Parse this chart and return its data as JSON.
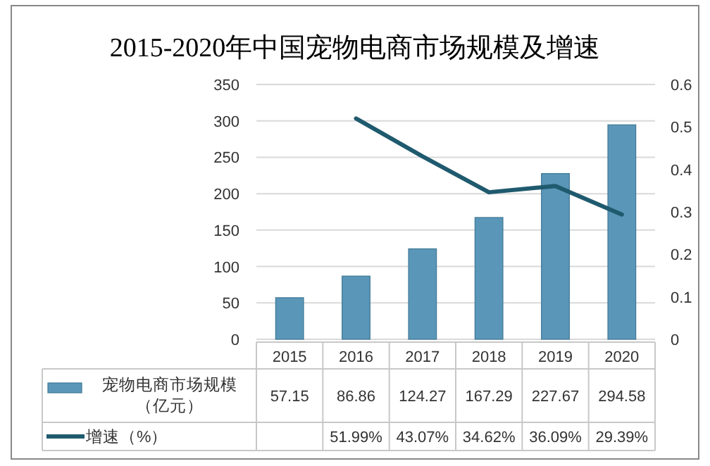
{
  "chart_data": {
    "type": "bar",
    "title": "2015-2020年中国宠物电商市场规模及增速",
    "categories": [
      "2015",
      "2016",
      "2017",
      "2018",
      "2019",
      "2020"
    ],
    "series": [
      {
        "name": "宠物电商市场规模（亿元）",
        "color": "#5a96b8",
        "values": [
          57.15,
          86.86,
          124.27,
          167.29,
          227.67,
          294.58
        ],
        "value_labels": [
          "57.15",
          "86.86",
          "124.27",
          "167.29",
          "227.67",
          "294.58"
        ]
      },
      {
        "name": "增速（%）",
        "type": "line",
        "axis": "y2",
        "color": "#1f5a6e",
        "values": [
          null,
          0.5199,
          0.4307,
          0.3462,
          0.3609,
          0.2939
        ],
        "value_labels": [
          null,
          "51.99%",
          "43.07%",
          "34.62%",
          "36.09%",
          "29.39%"
        ]
      }
    ],
    "ylim": [
      0,
      350
    ],
    "yticks": [
      0,
      50,
      100,
      150,
      200,
      250,
      300,
      350
    ],
    "y2lim": [
      0,
      0.6
    ],
    "y2ticks": [
      0,
      0.1,
      0.2,
      0.3,
      0.4,
      0.5,
      0.6
    ],
    "grid": "y",
    "legend": "bottom",
    "marker": "none",
    "line_style": "solid"
  }
}
